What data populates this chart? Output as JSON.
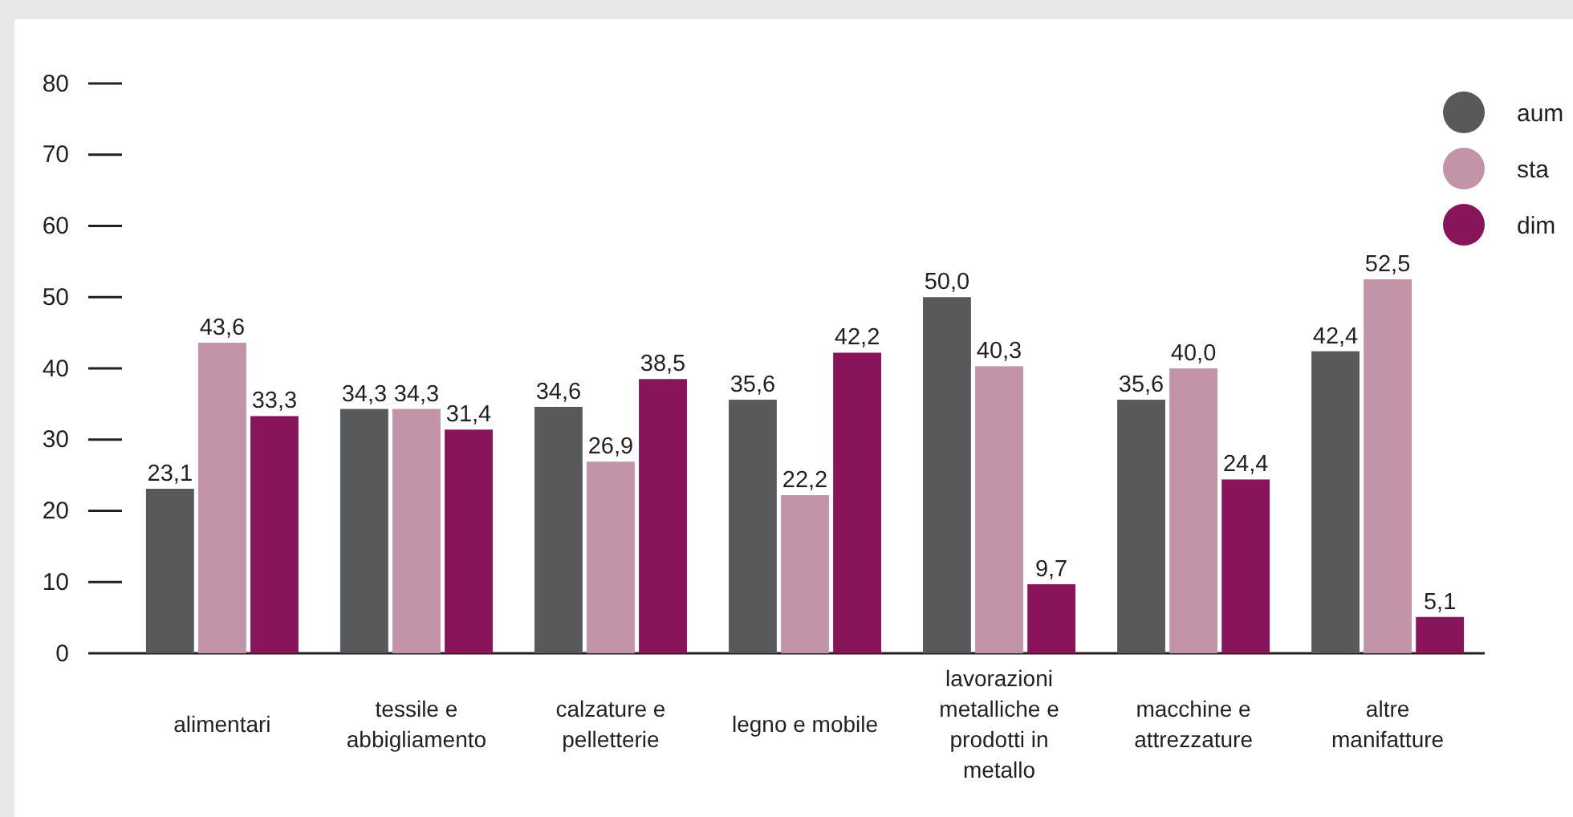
{
  "chart_data": {
    "type": "bar",
    "categories": [
      "alimentari",
      "tessile e abbigliamento",
      "calzature e pelletterie",
      "legno e mobile",
      "lavorazioni metalliche e prodotti in metallo",
      "macchine e attrezzature",
      "altre manifatture"
    ],
    "series": [
      {
        "name": "aum",
        "color": "#58595b",
        "values": [
          23.1,
          34.3,
          34.6,
          35.6,
          50.0,
          35.6,
          42.4
        ],
        "value_labels": [
          "23,1",
          "34,3",
          "34,6",
          "35,6",
          "50,0",
          "35,6",
          "42,4"
        ]
      },
      {
        "name": "sta",
        "color": "#c393a8",
        "values": [
          43.6,
          34.3,
          26.9,
          22.2,
          40.3,
          40.0,
          52.5
        ],
        "value_labels": [
          "43,6",
          "34,3",
          "26,9",
          "22,2",
          "40,3",
          "40,0",
          "52,5"
        ]
      },
      {
        "name": "dim",
        "color": "#88155a",
        "values": [
          33.3,
          31.4,
          38.5,
          42.2,
          9.7,
          24.4,
          5.1
        ],
        "value_labels": [
          "33,3",
          "31,4",
          "38,5",
          "42,2",
          "9,7",
          "24,4",
          "5,1"
        ]
      }
    ],
    "ylim": [
      0,
      80
    ],
    "yticks": [
      0,
      10,
      20,
      30,
      40,
      50,
      60,
      70,
      80
    ],
    "legend": "top right"
  }
}
